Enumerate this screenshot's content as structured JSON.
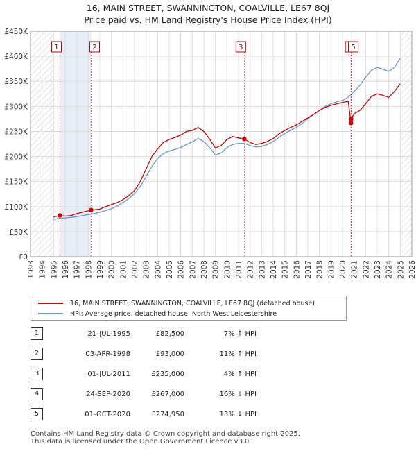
{
  "title": "16, MAIN STREET, SWANNINGTON, COALVILLE, LE67 8QJ",
  "subtitle": "Price paid vs. HM Land Registry's House Price Index (HPI)",
  "legend": {
    "property": "16, MAIN STREET, SWANNINGTON, COALVILLE, LE67 8QJ (detached house)",
    "hpi": "HPI: Average price, detached house, North West Leicestershire"
  },
  "colors": {
    "property": "#cc0000",
    "hpi": "#6699cc",
    "grid": "#dddddd",
    "band": "#e8eef8"
  },
  "sales": [
    {
      "num": "1",
      "date": "21-JUL-1995",
      "price": "£82,500",
      "hpi": "7% ↑ HPI"
    },
    {
      "num": "2",
      "date": "03-APR-1998",
      "price": "£93,000",
      "hpi": "11% ↑ HPI"
    },
    {
      "num": "3",
      "date": "01-JUL-2011",
      "price": "£235,000",
      "hpi": "4% ↑ HPI"
    },
    {
      "num": "4",
      "date": "24-SEP-2020",
      "price": "£267,000",
      "hpi": "16% ↓ HPI"
    },
    {
      "num": "5",
      "date": "01-OCT-2020",
      "price": "£274,950",
      "hpi": "13% ↓ HPI"
    }
  ],
  "footer": {
    "line1": "Contains HM Land Registry data © Crown copyright and database right 2025.",
    "line2": "This data is licensed under the Open Government Licence v3.0."
  },
  "chart_data": {
    "type": "line",
    "x_range": [
      1993,
      2026
    ],
    "ylim": [
      0,
      450000
    ],
    "y_ticks": [
      {
        "value": 0,
        "label": "£0"
      },
      {
        "value": 50000,
        "label": "£50K"
      },
      {
        "value": 100000,
        "label": "£100K"
      },
      {
        "value": 150000,
        "label": "£150K"
      },
      {
        "value": 200000,
        "label": "£200K"
      },
      {
        "value": 250000,
        "label": "£250K"
      },
      {
        "value": 300000,
        "label": "£300K"
      },
      {
        "value": 350000,
        "label": "£350K"
      },
      {
        "value": 400000,
        "label": "£400K"
      },
      {
        "value": 450000,
        "label": "£450K"
      }
    ],
    "x_ticks": [
      1993,
      1994,
      1995,
      1996,
      1997,
      1998,
      1999,
      2000,
      2001,
      2002,
      2003,
      2004,
      2005,
      2006,
      2007,
      2008,
      2009,
      2010,
      2011,
      2012,
      2013,
      2014,
      2015,
      2016,
      2017,
      2018,
      2019,
      2020,
      2021,
      2022,
      2023,
      2024,
      2025,
      2026
    ],
    "hatched_regions": [
      [
        1993,
        1995.0
      ],
      [
        2025.1,
        2026
      ]
    ],
    "highlight_bands": [
      [
        1995.55,
        1998.25
      ],
      [
        2020.73,
        2020.75
      ]
    ],
    "grid": true,
    "series": [
      {
        "name": "16, MAIN STREET, SWANNINGTON, COALVILLE, LE67 8QJ (detached house)",
        "color": "#cc0000",
        "points": [
          [
            1995.0,
            79000
          ],
          [
            1995.55,
            82500
          ],
          [
            1996.0,
            81000
          ],
          [
            1996.5,
            82000
          ],
          [
            1997.0,
            86000
          ],
          [
            1997.5,
            89000
          ],
          [
            1998.25,
            93000
          ],
          [
            1999.0,
            95000
          ],
          [
            1999.5,
            100000
          ],
          [
            2000.0,
            104000
          ],
          [
            2000.5,
            108000
          ],
          [
            2001.0,
            114000
          ],
          [
            2001.5,
            122000
          ],
          [
            2002.0,
            132000
          ],
          [
            2002.5,
            150000
          ],
          [
            2003.0,
            175000
          ],
          [
            2003.5,
            200000
          ],
          [
            2004.0,
            215000
          ],
          [
            2004.5,
            228000
          ],
          [
            2005.0,
            234000
          ],
          [
            2005.5,
            238000
          ],
          [
            2006.0,
            243000
          ],
          [
            2006.5,
            250000
          ],
          [
            2007.0,
            252000
          ],
          [
            2007.5,
            258000
          ],
          [
            2008.0,
            250000
          ],
          [
            2008.5,
            235000
          ],
          [
            2009.0,
            217000
          ],
          [
            2009.5,
            222000
          ],
          [
            2010.0,
            234000
          ],
          [
            2010.5,
            240000
          ],
          [
            2011.0,
            237000
          ],
          [
            2011.5,
            235000
          ],
          [
            2012.0,
            228000
          ],
          [
            2012.5,
            224000
          ],
          [
            2013.0,
            226000
          ],
          [
            2013.5,
            230000
          ],
          [
            2014.0,
            236000
          ],
          [
            2014.5,
            245000
          ],
          [
            2015.0,
            252000
          ],
          [
            2015.5,
            258000
          ],
          [
            2016.0,
            263000
          ],
          [
            2016.5,
            270000
          ],
          [
            2017.0,
            277000
          ],
          [
            2017.5,
            284000
          ],
          [
            2018.0,
            292000
          ],
          [
            2018.5,
            298000
          ],
          [
            2019.0,
            302000
          ],
          [
            2019.5,
            305000
          ],
          [
            2020.0,
            308000
          ],
          [
            2020.5,
            310000
          ],
          [
            2020.73,
            267000
          ],
          [
            2020.75,
            274950
          ],
          [
            2021.0,
            285000
          ],
          [
            2021.5,
            292000
          ],
          [
            2022.0,
            305000
          ],
          [
            2022.5,
            320000
          ],
          [
            2023.0,
            325000
          ],
          [
            2023.5,
            322000
          ],
          [
            2024.0,
            318000
          ],
          [
            2024.5,
            330000
          ],
          [
            2025.0,
            345000
          ]
        ]
      },
      {
        "name": "HPI: Average price, detached house, North West Leicestershire",
        "color": "#6699cc",
        "points": [
          [
            1995.0,
            74000
          ],
          [
            1995.5,
            77000
          ],
          [
            1996.0,
            77500
          ],
          [
            1996.5,
            78500
          ],
          [
            1997.0,
            80000
          ],
          [
            1997.5,
            82000
          ],
          [
            1998.0,
            84000
          ],
          [
            1998.5,
            86000
          ],
          [
            1999.0,
            89000
          ],
          [
            1999.5,
            92000
          ],
          [
            2000.0,
            96000
          ],
          [
            2000.5,
            101000
          ],
          [
            2001.0,
            108000
          ],
          [
            2001.5,
            116000
          ],
          [
            2002.0,
            126000
          ],
          [
            2002.5,
            140000
          ],
          [
            2003.0,
            160000
          ],
          [
            2003.5,
            180000
          ],
          [
            2004.0,
            196000
          ],
          [
            2004.5,
            206000
          ],
          [
            2005.0,
            211000
          ],
          [
            2005.5,
            214000
          ],
          [
            2006.0,
            218000
          ],
          [
            2006.5,
            224000
          ],
          [
            2007.0,
            229000
          ],
          [
            2007.5,
            236000
          ],
          [
            2008.0,
            230000
          ],
          [
            2008.5,
            218000
          ],
          [
            2009.0,
            203000
          ],
          [
            2009.5,
            207000
          ],
          [
            2010.0,
            218000
          ],
          [
            2010.5,
            224000
          ],
          [
            2011.0,
            226000
          ],
          [
            2011.5,
            226000
          ],
          [
            2012.0,
            222000
          ],
          [
            2012.5,
            219000
          ],
          [
            2013.0,
            220000
          ],
          [
            2013.5,
            224000
          ],
          [
            2014.0,
            230000
          ],
          [
            2014.5,
            238000
          ],
          [
            2015.0,
            246000
          ],
          [
            2015.5,
            252000
          ],
          [
            2016.0,
            258000
          ],
          [
            2016.5,
            266000
          ],
          [
            2017.0,
            275000
          ],
          [
            2017.5,
            284000
          ],
          [
            2018.0,
            292000
          ],
          [
            2018.5,
            300000
          ],
          [
            2019.0,
            305000
          ],
          [
            2019.5,
            309000
          ],
          [
            2020.0,
            312000
          ],
          [
            2020.5,
            318000
          ],
          [
            2021.0,
            330000
          ],
          [
            2021.5,
            342000
          ],
          [
            2022.0,
            358000
          ],
          [
            2022.5,
            372000
          ],
          [
            2023.0,
            378000
          ],
          [
            2023.5,
            374000
          ],
          [
            2024.0,
            370000
          ],
          [
            2024.5,
            378000
          ],
          [
            2025.0,
            396000
          ]
        ]
      }
    ],
    "markers": [
      {
        "label": "1",
        "x": 1995.55,
        "y": 82500
      },
      {
        "label": "2",
        "x": 1998.25,
        "y": 93000
      },
      {
        "label": "3",
        "x": 2011.5,
        "y": 235000
      },
      {
        "label": "4",
        "x": 2020.73,
        "y": 267000
      },
      {
        "label": "5",
        "x": 2020.75,
        "y": 274950
      }
    ]
  }
}
